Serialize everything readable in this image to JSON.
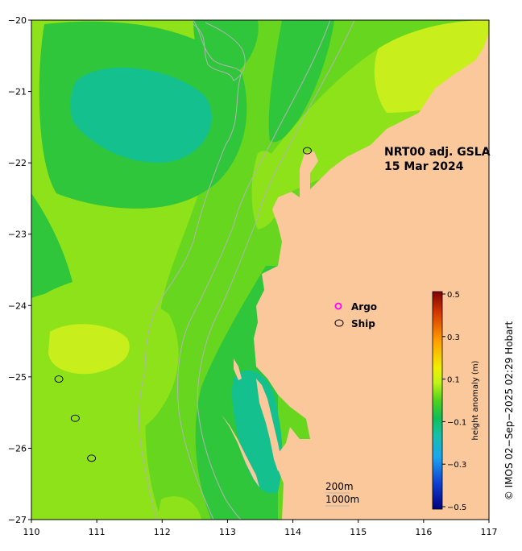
{
  "map": {
    "lon_range": [
      110,
      117
    ],
    "lat_range": [
      -27,
      -20
    ],
    "x_ticks": [
      "110",
      "111",
      "112",
      "113",
      "114",
      "115",
      "116",
      "117"
    ],
    "y_ticks": [
      "−20",
      "−21",
      "−22",
      "−23",
      "−24",
      "−25",
      "−26",
      "−27"
    ],
    "colors": {
      "land": "#fbc89b",
      "ocean_base": "#66d61e",
      "ocean_light": "#8ee21a",
      "ocean_yellow": "#c8ef1c",
      "ocean_green": "#2fc63c",
      "ocean_teal": "#14c08e",
      "contour_line": "#b3b3b3"
    }
  },
  "annotation": {
    "line1": "NRT00 adj. GSLA",
    "line2": "15 Mar 2024"
  },
  "legend": {
    "argo_label": "Argo",
    "ship_label": "Ship",
    "argo_color": "#ff00ff",
    "ship_color": "#000000"
  },
  "depth_labels": {
    "shallow": "200m",
    "deep": "1000m"
  },
  "colorbar": {
    "label": "height anomaly (m)",
    "ticks": [
      "0.5",
      "0.3",
      "0.1",
      "−0.1",
      "−0.3",
      "−0.5"
    ],
    "range": [
      -0.5,
      0.5
    ]
  },
  "ship_points": [
    {
      "lon": 110.42,
      "lat": -25.03
    },
    {
      "lon": 110.67,
      "lat": -25.58
    },
    {
      "lon": 110.92,
      "lat": -26.14
    },
    {
      "lon": 114.22,
      "lat": -21.83
    }
  ],
  "credit": "© IMOS 02−Sep−2025 02:29 Hobart"
}
